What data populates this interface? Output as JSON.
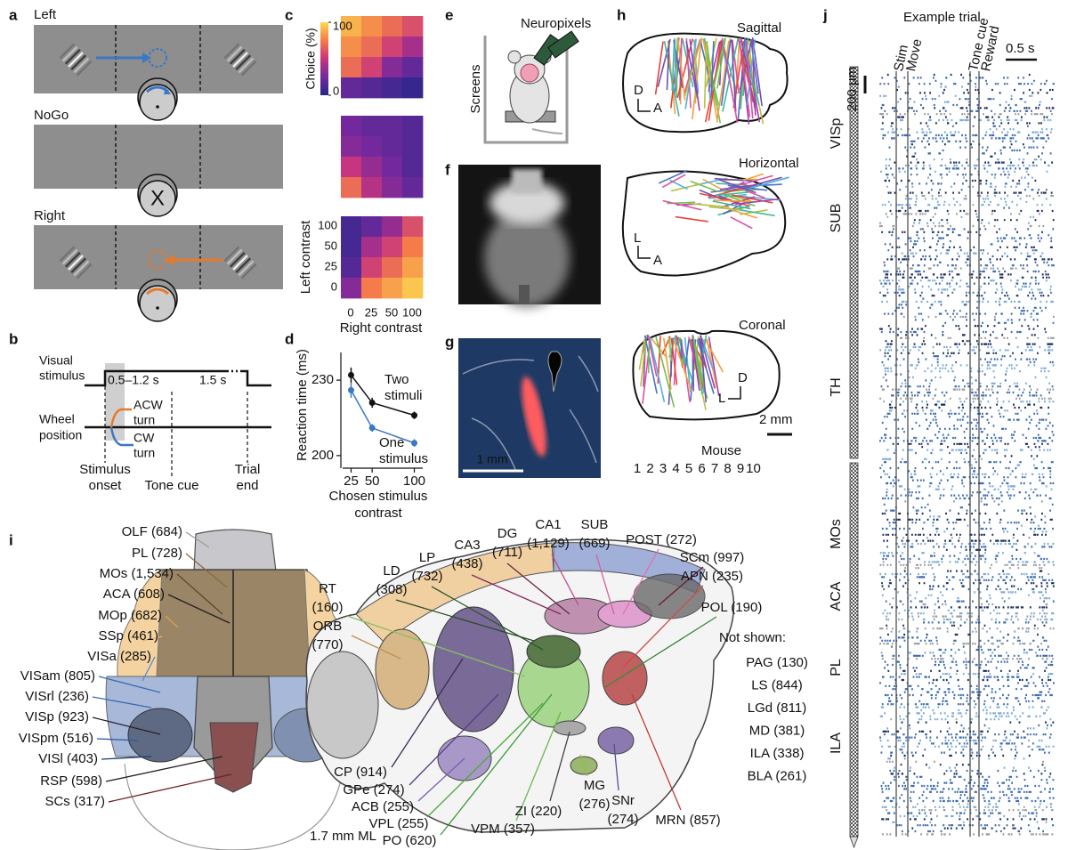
{
  "panel_labels": [
    "a",
    "b",
    "c",
    "d",
    "e",
    "f",
    "g",
    "h",
    "i",
    "j"
  ],
  "a": {
    "left": "Left",
    "nogo": "NoGo",
    "right": "Right",
    "nogo_mark": "X",
    "left_color": "#3a78c3",
    "right_color": "#e8792b"
  },
  "b": {
    "visual_stimulus": [
      "Visual",
      "stimulus"
    ],
    "wheel_position": [
      "Wheel",
      "position"
    ],
    "window": "0.5–1.2 s",
    "delay": "1.5 s",
    "acw_turn": [
      "ACW",
      "turn"
    ],
    "cw_turn": [
      "CW",
      "turn"
    ],
    "stimulus_onset": [
      "Stimulus",
      "onset"
    ],
    "tone_cue": "Tone cue",
    "trial_end": [
      "Trial",
      "end"
    ]
  },
  "c": {
    "colorbar_label": "Choice (%)",
    "colorbar_ticks": [
      0,
      100
    ],
    "colormap": [
      "#26278a",
      "#73299d",
      "#c7347f",
      "#f57b4a",
      "#fcd94e"
    ],
    "matrices": [
      [
        [
          90,
          80,
          70,
          60
        ],
        [
          80,
          70,
          55,
          40
        ],
        [
          70,
          55,
          30,
          20
        ],
        [
          20,
          15,
          10,
          5
        ]
      ],
      [
        [
          25,
          20,
          20,
          15
        ],
        [
          30,
          25,
          20,
          15
        ],
        [
          50,
          35,
          25,
          15
        ],
        [
          70,
          45,
          30,
          20
        ]
      ],
      [
        [
          10,
          20,
          35,
          60
        ],
        [
          10,
          40,
          55,
          75
        ],
        [
          15,
          55,
          70,
          85
        ],
        [
          30,
          75,
          85,
          95
        ]
      ]
    ],
    "y_label": "Left contrast",
    "row_labels": [
      "100",
      "50",
      "25",
      "0"
    ],
    "x_label": "Right contrast",
    "column_labels": [
      "0",
      "25",
      "50",
      "100"
    ]
  },
  "d": {
    "type": "line",
    "y_label": "Reaction time (ms)",
    "x_label": [
      "Chosen stimulus",
      "contrast"
    ],
    "x": [
      25,
      50,
      100
    ],
    "xlim": [
      15,
      110
    ],
    "xticks": [
      25,
      50,
      100
    ],
    "ylim": [
      195,
      241
    ],
    "yticks": [
      200,
      230
    ],
    "series": [
      {
        "name": [
          "Two",
          "stimuli"
        ],
        "color": "#111111",
        "values": [
          232,
          221,
          216
        ],
        "errors": [
          3,
          2,
          1.5
        ]
      },
      {
        "name": [
          "One",
          "stimulus"
        ],
        "color": "#3a78c3",
        "values": [
          226,
          211,
          205
        ],
        "errors": [
          3,
          1.5,
          1.5
        ]
      }
    ]
  },
  "e": {
    "probe": "Neuropixels",
    "screens": "Screens"
  },
  "g": {
    "scale": "1 mm"
  },
  "h": {
    "views": [
      "Sagittal",
      "Horizontal",
      "Coronal"
    ],
    "sagittal_axes": [
      "D",
      "A"
    ],
    "horizontal_axes": [
      "L",
      "A"
    ],
    "coronal_axes": [
      "D",
      "L"
    ],
    "scale": "2 mm",
    "legend_title": "Mouse",
    "mice": [
      "1",
      "2",
      "3",
      "4",
      "5",
      "6",
      "7",
      "8",
      "9",
      "10"
    ],
    "mouse_colors": [
      "#e8423a",
      "#f0a040",
      "#b8c040",
      "#70c050",
      "#40b8a0",
      "#50b0e0",
      "#4a70c8",
      "#7050b0",
      "#a040b0",
      "#e050a0"
    ]
  },
  "i": {
    "left_labels": [
      {
        "label": "OLF (684)",
        "color": "#999999"
      },
      {
        "label": "PL (728)",
        "color": "#8a6a3a"
      },
      {
        "label": "MOs (1,534)",
        "color": "#5a4a2a"
      },
      {
        "label": "ACA (608)",
        "color": "#222222"
      },
      {
        "label": "MOp (682)",
        "color": "#e0a050"
      },
      {
        "label": "SSp (461)",
        "color": "#f0b060"
      },
      {
        "label": "VISa (285)",
        "color": "#5a8ad0"
      },
      {
        "label": "VISam (805)",
        "color": "#3a6ab0"
      },
      {
        "label": "VISrl (236)",
        "color": "#3a6ab0"
      },
      {
        "label": "VISp (923)",
        "color": "#222222"
      },
      {
        "label": "VISpm (516)",
        "color": "#2a5aa0"
      },
      {
        "label": "VISl (403)",
        "color": "#1a3a70"
      },
      {
        "label": "RSP (598)",
        "color": "#222222"
      },
      {
        "label": "SCs (317)",
        "color": "#6a2020"
      }
    ],
    "right_labels": [
      {
        "lines": [
          "DG",
          "(711)"
        ],
        "color": "#6a2a4a"
      },
      {
        "lines": [
          "CA1",
          "(1,129)"
        ],
        "color": "#c04a8a"
      },
      {
        "lines": [
          "SUB",
          "(669)"
        ],
        "color": "#d060a0"
      },
      {
        "lines": [
          "CA3",
          "(438)"
        ],
        "color": "#8a2a5a"
      },
      {
        "lines": [
          "LP",
          "(732)"
        ],
        "color": "#2a5a2a"
      },
      {
        "lines": [
          "POST (272)"
        ],
        "color": "#e070b0"
      },
      {
        "lines": [
          "SCm (997)"
        ],
        "color": "#6a1a2a"
      },
      {
        "lines": [
          "LD",
          "(308)"
        ],
        "color": "#2a4a2a"
      },
      {
        "lines": [
          "APN (235)"
        ],
        "color": "#d04a4a"
      },
      {
        "lines": [
          "RT",
          "(160)"
        ],
        "color": "#8ac060"
      },
      {
        "lines": [
          "POL (190)"
        ],
        "color": "#3a8a3a"
      },
      {
        "lines": [
          "ORB",
          "(770)"
        ],
        "color": "#c09050"
      },
      {
        "lines": [
          "CP (914)"
        ],
        "color": "#3a2a5a"
      },
      {
        "lines": [
          "GPe (274)"
        ],
        "color": "#5a3a8a"
      },
      {
        "lines": [
          "ACB (255)"
        ],
        "color": "#7a5aba"
      },
      {
        "lines": [
          "VPL (255)"
        ],
        "color": "#4aaa3a"
      },
      {
        "lines": [
          "PO (620)"
        ],
        "color": "#3a9a3a"
      },
      {
        "lines": [
          "ZI (220)"
        ],
        "color": "#444444"
      },
      {
        "lines": [
          "MG",
          "(276)"
        ],
        "color": "#8ac040"
      },
      {
        "lines": [
          "SNr",
          "(274)"
        ],
        "color": "#5a4a9a"
      },
      {
        "lines": [
          "VPM (357)"
        ],
        "color": "#6aba4a"
      },
      {
        "lines": [
          "MRN (857)"
        ],
        "color": "#c03a3a"
      }
    ],
    "not_shown_title": "Not shown:",
    "not_shown": [
      {
        "label": "PAG (130)",
        "color": "#e06060"
      },
      {
        "label": "LS (844)",
        "color": "#7a5aaa"
      },
      {
        "label": "LGd (811)",
        "color": "#222222"
      },
      {
        "label": "MD (381)",
        "color": "#4a9a4a"
      },
      {
        "label": "ILA (338)",
        "color": "#a07040"
      },
      {
        "label": "BLA (261)",
        "color": "#bbbbbb"
      }
    ],
    "section": "1.7 mm ML"
  },
  "j": {
    "title": "Example trial",
    "events": [
      "Stim",
      "Move",
      "Tone cue",
      "Reward"
    ],
    "time_scale": "0.5 s",
    "depth_scale": "200 µm",
    "regions": [
      "VISp",
      "SUB",
      "TH",
      "MOs",
      "ACA",
      "PL",
      "ILA"
    ]
  }
}
